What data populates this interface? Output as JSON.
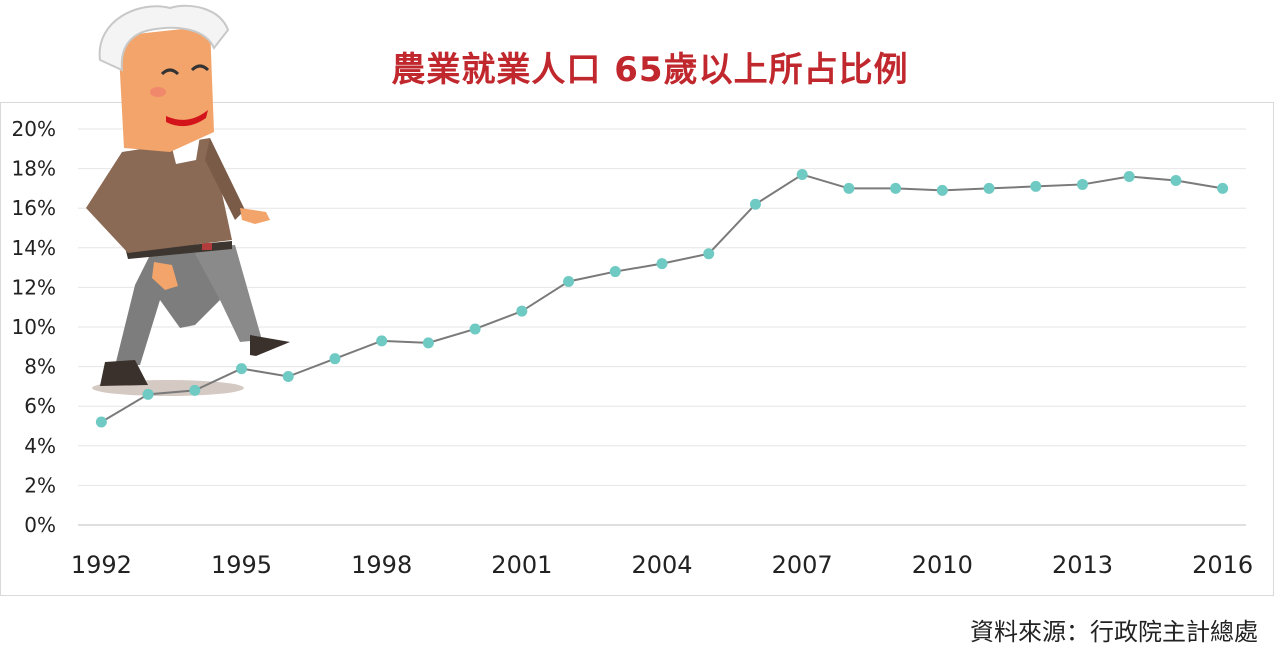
{
  "title": "農業就業人口 65歲以上所占比例",
  "source": "資料來源：行政院主計總處",
  "colors": {
    "title": "#c0282e",
    "line": "#7a7a7a",
    "marker": "#6fcac4",
    "grid": "#e6e6e6"
  },
  "chart_data": {
    "type": "line",
    "x": [
      1992,
      1993,
      1994,
      1995,
      1996,
      1997,
      1998,
      1999,
      2000,
      2001,
      2002,
      2003,
      2004,
      2005,
      2006,
      2007,
      2008,
      2009,
      2010,
      2011,
      2012,
      2013,
      2014,
      2015,
      2016
    ],
    "series": [
      {
        "values": [
          5.2,
          6.6,
          6.8,
          7.9,
          7.5,
          8.4,
          9.3,
          9.2,
          9.9,
          10.8,
          12.3,
          12.8,
          13.2,
          13.7,
          16.2,
          17.7,
          17.0,
          17.0,
          16.9,
          17.0,
          17.1,
          17.2,
          17.6,
          17.4,
          17.0
        ]
      }
    ],
    "x_tick_labels": [
      "1992",
      "1995",
      "1998",
      "2001",
      "2004",
      "2007",
      "2010",
      "2013",
      "2016"
    ],
    "y_tick_labels": [
      "0%",
      "2%",
      "4%",
      "6%",
      "8%",
      "10%",
      "12%",
      "14%",
      "16%",
      "18%",
      "20%"
    ],
    "ylim": [
      0,
      20
    ],
    "y_unit": "%",
    "grid": true,
    "legend": "none"
  },
  "illustration": {
    "subject": "cartoon elderly farmer walking up the line"
  }
}
